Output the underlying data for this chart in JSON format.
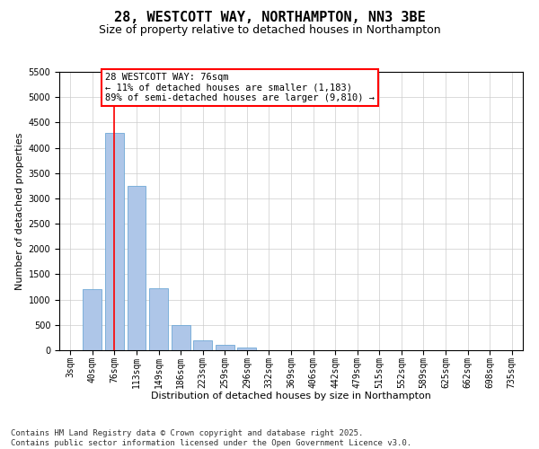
{
  "title_line1": "28, WESTCOTT WAY, NORTHAMPTON, NN3 3BE",
  "title_line2": "Size of property relative to detached houses in Northampton",
  "xlabel": "Distribution of detached houses by size in Northampton",
  "ylabel": "Number of detached properties",
  "categories": [
    "3sqm",
    "40sqm",
    "76sqm",
    "113sqm",
    "149sqm",
    "186sqm",
    "223sqm",
    "259sqm",
    "296sqm",
    "332sqm",
    "369sqm",
    "406sqm",
    "442sqm",
    "479sqm",
    "515sqm",
    "552sqm",
    "589sqm",
    "625sqm",
    "662sqm",
    "698sqm",
    "735sqm"
  ],
  "values": [
    0,
    1200,
    4300,
    3250,
    1230,
    500,
    190,
    100,
    60,
    0,
    0,
    0,
    0,
    0,
    0,
    0,
    0,
    0,
    0,
    0,
    0
  ],
  "bar_color": "#aec6e8",
  "bar_edge_color": "#6fa8d6",
  "vline_x_idx": 2,
  "vline_color": "red",
  "ylim": [
    0,
    5500
  ],
  "yticks": [
    0,
    500,
    1000,
    1500,
    2000,
    2500,
    3000,
    3500,
    4000,
    4500,
    5000,
    5500
  ],
  "annotation_text": "28 WESTCOTT WAY: 76sqm\n← 11% of detached houses are smaller (1,183)\n89% of semi-detached houses are larger (9,810) →",
  "annotation_box_color": "red",
  "footer_line1": "Contains HM Land Registry data © Crown copyright and database right 2025.",
  "footer_line2": "Contains public sector information licensed under the Open Government Licence v3.0.",
  "title_fontsize": 11,
  "subtitle_fontsize": 9,
  "axis_label_fontsize": 8,
  "tick_fontsize": 7,
  "annotation_fontsize": 7.5,
  "footer_fontsize": 6.5
}
